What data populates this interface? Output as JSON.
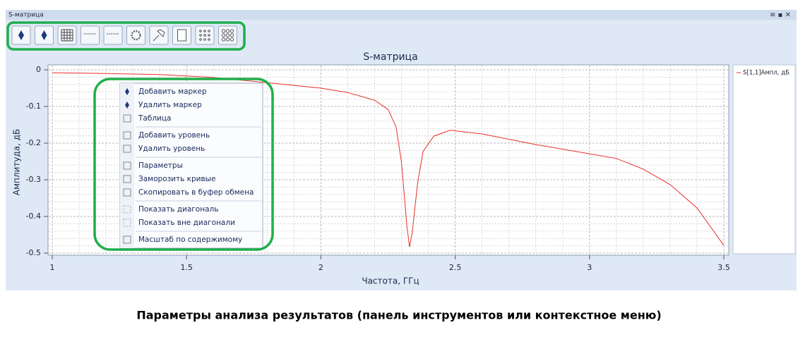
{
  "window": {
    "title": "S-матрица"
  },
  "chart_data": {
    "type": "line",
    "title": "S-матрица",
    "x_label": "Частота, ГГц",
    "y_label": "Амплитуда, дБ",
    "x": [
      1.0,
      1.2,
      1.4,
      1.6,
      1.8,
      2.0,
      2.1,
      2.2,
      2.25,
      2.28,
      2.3,
      2.32,
      2.33,
      2.34,
      2.36,
      2.38,
      2.42,
      2.48,
      2.6,
      2.8,
      3.0,
      3.1,
      3.2,
      3.3,
      3.4,
      3.5
    ],
    "series": [
      {
        "name": "S[1,1]Ампл, дБ",
        "color": "#e8302a",
        "values": [
          -0.008,
          -0.01,
          -0.013,
          -0.021,
          -0.035,
          -0.05,
          -0.062,
          -0.083,
          -0.108,
          -0.156,
          -0.252,
          -0.425,
          -0.483,
          -0.444,
          -0.31,
          -0.223,
          -0.181,
          -0.165,
          -0.175,
          -0.204,
          -0.229,
          -0.242,
          -0.271,
          -0.313,
          -0.377,
          -0.479
        ]
      }
    ],
    "xlim": [
      1,
      3.5
    ],
    "ylim": [
      -0.5,
      0
    ],
    "xticks": [
      1,
      1.5,
      2,
      2.5,
      3,
      3.5
    ],
    "yticks": [
      -0.5,
      -0.4,
      -0.3,
      -0.2,
      -0.1,
      0
    ],
    "grid": true
  },
  "context_menu": {
    "groups": [
      [
        "Добавить маркер",
        "Удалить маркер",
        "Таблица"
      ],
      [
        "Добавить уровень",
        "Удалить уровень"
      ],
      [
        "Параметры",
        "Заморозить кривые",
        "Скопировать в буфер обмена"
      ],
      [
        "Показать диагональ",
        "Показать вне диагонали"
      ],
      [
        "Масштаб по содержимому"
      ]
    ]
  },
  "caption": "Параметры анализа результатов (панель инструментов или контекстное меню)"
}
